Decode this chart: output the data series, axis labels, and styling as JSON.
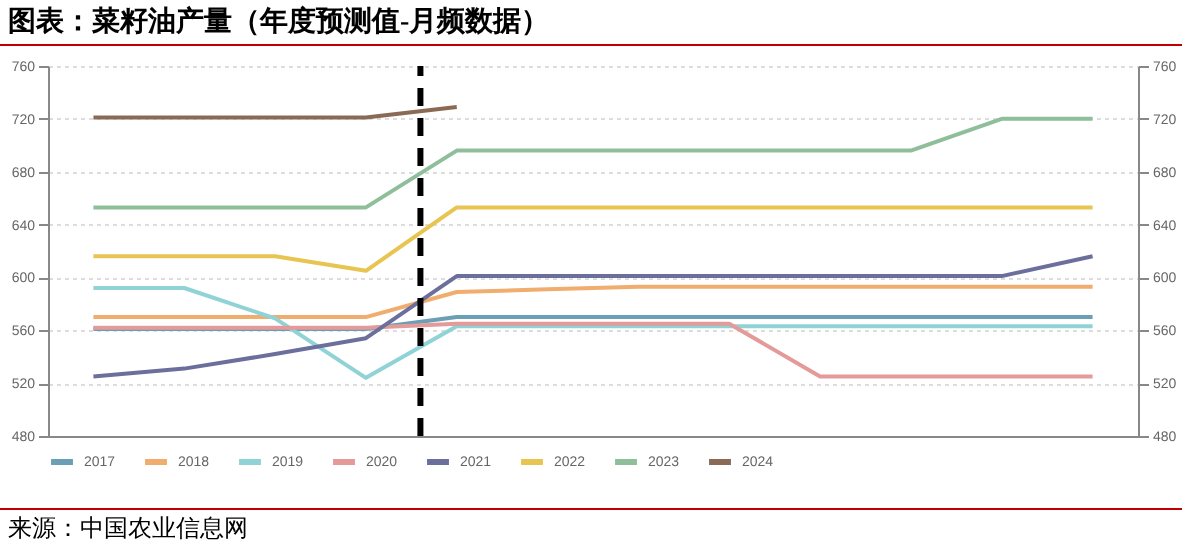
{
  "chart_data": {
    "type": "line",
    "title": "图表：菜籽油产量（年度预测值-月频数据）",
    "categories": [
      null,
      null,
      null,
      null,
      null,
      null,
      null,
      null,
      null,
      null,
      null,
      null
    ],
    "ylim": [
      480,
      760
    ],
    "yticks": [
      480,
      520,
      560,
      600,
      640,
      680,
      720,
      760
    ],
    "y2lim": [
      480,
      760
    ],
    "y2ticks": [
      480,
      520,
      560,
      600,
      640,
      680,
      720,
      760
    ],
    "grid": "y",
    "legend": "bottom",
    "marker": "none",
    "line_style": "solid",
    "series": [
      {
        "name": "2017",
        "color": "#6a9fb5",
        "values": [
          561,
          561,
          561,
          561,
          570,
          570,
          570,
          570,
          570,
          570,
          570,
          570
        ]
      },
      {
        "name": "2018",
        "color": "#f0ad6e",
        "values": [
          570,
          570,
          570,
          570,
          589,
          591,
          593,
          593,
          593,
          593,
          593,
          593
        ]
      },
      {
        "name": "2019",
        "color": "#8fd3d6",
        "values": [
          592,
          592,
          569,
          524,
          563,
          563,
          563,
          563,
          563,
          563,
          563,
          563
        ]
      },
      {
        "name": "2020",
        "color": "#e59a9a",
        "values": [
          562,
          562,
          562,
          562,
          565,
          565,
          565,
          565,
          525,
          525,
          525,
          525
        ]
      },
      {
        "name": "2021",
        "color": "#6c6f9c",
        "values": [
          525,
          531,
          542,
          554,
          601,
          601,
          601,
          601,
          601,
          601,
          601,
          616
        ]
      },
      {
        "name": "2022",
        "color": "#e8c550",
        "values": [
          616,
          616,
          616,
          605,
          653,
          653,
          653,
          653,
          653,
          653,
          653,
          653
        ]
      },
      {
        "name": "2023",
        "color": "#8fbf9a",
        "values": [
          653,
          653,
          653,
          653,
          696,
          696,
          696,
          696,
          696,
          696,
          720,
          720
        ]
      },
      {
        "name": "2024",
        "color": "#8b6a55",
        "values": [
          721,
          721,
          721,
          721,
          729,
          null,
          null,
          null,
          null,
          null,
          null,
          null
        ]
      }
    ],
    "annotations": [
      "来源：中国农业信息网"
    ]
  }
}
